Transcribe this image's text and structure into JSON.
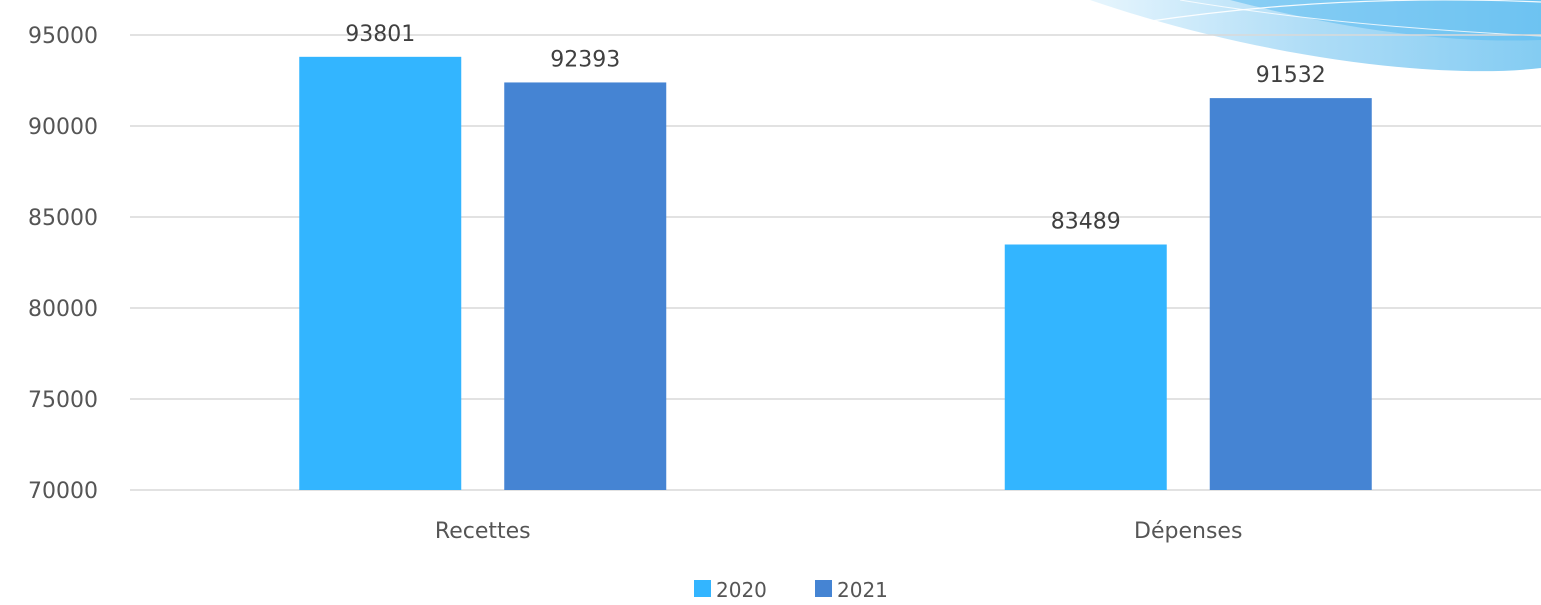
{
  "chart_data": {
    "type": "bar",
    "title": "",
    "xlabel": "",
    "ylabel": "",
    "categories": [
      "Recettes",
      "Dépenses"
    ],
    "series": [
      {
        "name": "2020",
        "values": [
          93801,
          83489
        ],
        "color": "#33b5ff"
      },
      {
        "name": "2021",
        "values": [
          92393,
          91532
        ],
        "color": "#4584d3"
      }
    ],
    "ylim": [
      70000,
      95000
    ],
    "yticks": [
      70000,
      75000,
      80000,
      85000,
      90000,
      95000
    ],
    "grid": true,
    "data_labels": true,
    "legend_position": "bottom",
    "decoration": "light-blue-swoosh-top-right"
  }
}
